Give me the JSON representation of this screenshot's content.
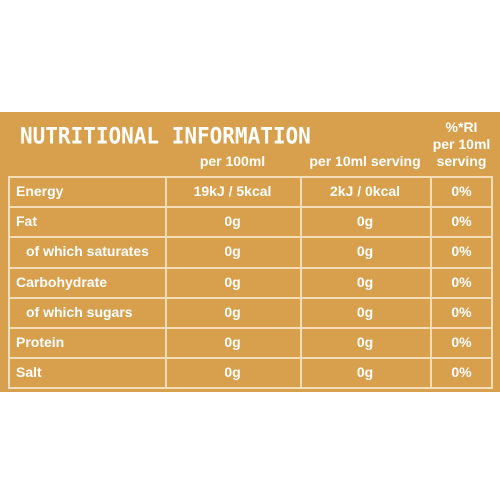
{
  "header": {
    "title": "NUTRITIONAL INFORMATION"
  },
  "table": {
    "columns": [
      [
        "per 100ml"
      ],
      [
        "per 10ml serving"
      ],
      [
        "%*RI",
        "per 10ml",
        "serving"
      ]
    ],
    "rows": [
      [
        "Energy",
        "19kJ / 5kcal",
        "2kJ / 0kcal",
        "0%"
      ],
      [
        "Fat",
        "0g",
        "0g",
        "0%"
      ],
      [
        "of which saturates",
        "0g",
        "0g",
        "0%"
      ],
      [
        "Carbohydrate",
        "0g",
        "0g",
        "0%"
      ],
      [
        "of which sugars",
        "0g",
        "0g",
        "0%"
      ],
      [
        "Protein",
        "0g",
        "0g",
        "0%"
      ],
      [
        "Salt",
        "0g",
        "0g",
        "0%"
      ]
    ]
  }
}
